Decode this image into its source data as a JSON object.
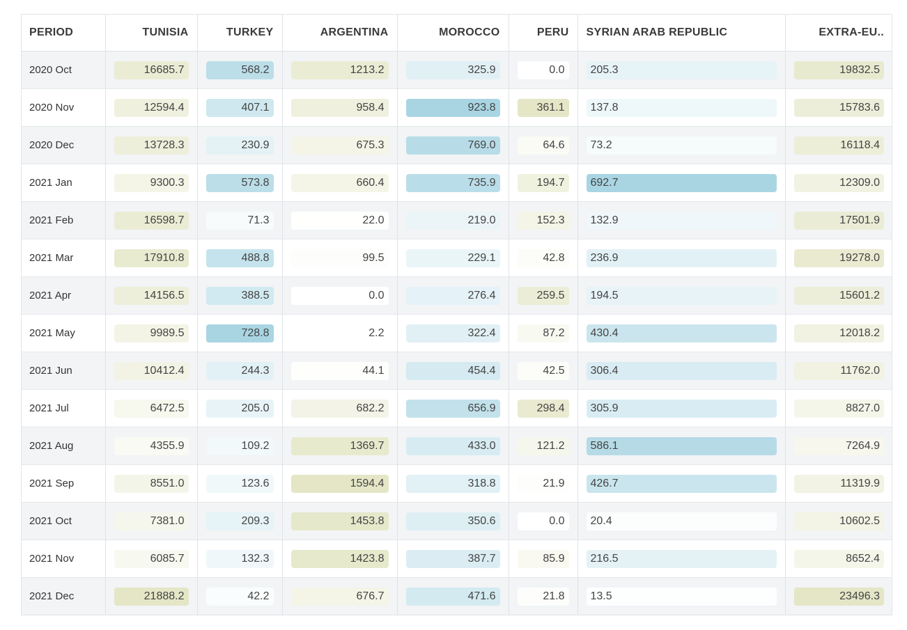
{
  "chart_data": {
    "type": "table",
    "columns": [
      "PERIOD",
      "TUNISIA",
      "TURKEY",
      "ARGENTINA",
      "MOROCCO",
      "PERU",
      "SYRIAN ARAB REPUBLIC",
      "EXTRA-EU.."
    ],
    "rows": [
      {
        "period": "2020 Oct",
        "values": [
          "16685.7",
          "568.2",
          "1213.2",
          "325.9",
          "0.0",
          "205.3",
          "19832.5"
        ]
      },
      {
        "period": "2020 Nov",
        "values": [
          "12594.4",
          "407.1",
          "958.4",
          "923.8",
          "361.1",
          "137.8",
          "15783.6"
        ]
      },
      {
        "period": "2020 Dec",
        "values": [
          "13728.3",
          "230.9",
          "675.3",
          "769.0",
          "64.6",
          "73.2",
          "16118.4"
        ]
      },
      {
        "period": "2021 Jan",
        "values": [
          "9300.3",
          "573.8",
          "660.4",
          "735.9",
          "194.7",
          "692.7",
          "12309.0"
        ]
      },
      {
        "period": "2021 Feb",
        "values": [
          "16598.7",
          "71.3",
          "22.0",
          "219.0",
          "152.3",
          "132.9",
          "17501.9"
        ]
      },
      {
        "period": "2021 Mar",
        "values": [
          "17910.8",
          "488.8",
          "99.5",
          "229.1",
          "42.8",
          "236.9",
          "19278.0"
        ]
      },
      {
        "period": "2021 Apr",
        "values": [
          "14156.5",
          "388.5",
          "0.0",
          "276.4",
          "259.5",
          "194.5",
          "15601.2"
        ]
      },
      {
        "period": "2021 May",
        "values": [
          "9989.5",
          "728.8",
          "2.2",
          "322.4",
          "87.2",
          "430.4",
          "12018.2"
        ]
      },
      {
        "period": "2021 Jun",
        "values": [
          "10412.4",
          "244.3",
          "44.1",
          "454.4",
          "42.5",
          "306.4",
          "11762.0"
        ]
      },
      {
        "period": "2021 Jul",
        "values": [
          "6472.5",
          "205.0",
          "682.2",
          "656.9",
          "298.4",
          "305.9",
          "8827.0"
        ]
      },
      {
        "period": "2021 Aug",
        "values": [
          "4355.9",
          "109.2",
          "1369.7",
          "433.0",
          "121.2",
          "586.1",
          "7264.9"
        ]
      },
      {
        "period": "2021 Sep",
        "values": [
          "8551.0",
          "123.6",
          "1594.4",
          "318.8",
          "21.9",
          "426.7",
          "11319.9"
        ]
      },
      {
        "period": "2021 Oct",
        "values": [
          "7381.0",
          "209.3",
          "1453.8",
          "350.6",
          "0.0",
          "20.4",
          "10602.5"
        ]
      },
      {
        "period": "2021 Nov",
        "values": [
          "6085.7",
          "132.3",
          "1423.8",
          "387.7",
          "85.9",
          "216.5",
          "8652.4"
        ]
      },
      {
        "period": "2021 Dec",
        "values": [
          "21888.2",
          "42.2",
          "676.7",
          "471.6",
          "21.8",
          "13.5",
          "23496.3"
        ]
      }
    ],
    "column_color_scales": [
      "olive",
      "blue",
      "olive",
      "blue",
      "olive",
      "blue",
      "olive"
    ],
    "scale_colors": {
      "olive": "#e4e6c6",
      "blue": "#a9d5e3",
      "base": "#ffffff"
    }
  }
}
